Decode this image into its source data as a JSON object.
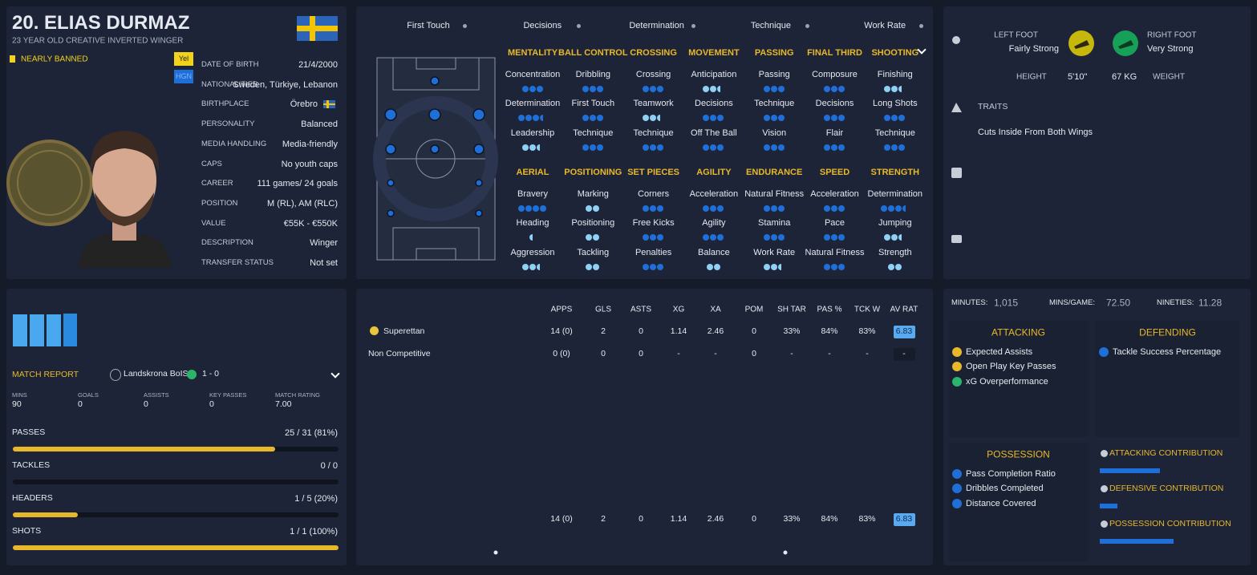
{
  "header": {
    "name": "20. ELIAS DURMAZ",
    "subtitle": "23 YEAR OLD CREATIVE INVERTED WINGER",
    "status": "NEARLY BANNED",
    "badges": [
      "Yel",
      "HGN"
    ]
  },
  "info": [
    [
      "DATE OF BIRTH",
      "21/4/2000"
    ],
    [
      "NATIONALITIES",
      "Sweden, Türkiye, Lebanon"
    ],
    [
      "BIRTHPLACE",
      "Örebro"
    ],
    [
      "PERSONALITY",
      "Balanced"
    ],
    [
      "MEDIA HANDLING",
      "Media-friendly"
    ],
    [
      "CAPS",
      "No youth caps"
    ],
    [
      "CAREER",
      "111 games/ 24 goals"
    ],
    [
      "POSITION",
      "M (RL), AM (RLC)"
    ],
    [
      "VALUE",
      "€55K - €550K"
    ],
    [
      "DESCRIPTION",
      "Winger"
    ],
    [
      "TRANSFER STATUS",
      "Not set"
    ]
  ],
  "key_attributes": [
    "First Touch",
    "Decisions",
    "Determination",
    "Technique",
    "Work Rate"
  ],
  "attribute_groups": [
    {
      "name": "MENTALITY",
      "attributes": [
        {
          "name": "Concentration",
          "dots": 3
        },
        {
          "name": "Determination",
          "dots": 3.5
        },
        {
          "name": "Leadership",
          "dots": 2.5
        }
      ]
    },
    {
      "name": "BALL CONTROL",
      "attributes": [
        {
          "name": "Dribbling",
          "dots": 3
        },
        {
          "name": "First Touch",
          "dots": 3
        },
        {
          "name": "Technique",
          "dots": 3
        }
      ]
    },
    {
      "name": "CROSSING",
      "attributes": [
        {
          "name": "Crossing",
          "dots": 3
        },
        {
          "name": "Teamwork",
          "dots": 2.5
        },
        {
          "name": "Technique",
          "dots": 3
        }
      ]
    },
    {
      "name": "MOVEMENT",
      "attributes": [
        {
          "name": "Anticipation",
          "dots": 2.5
        },
        {
          "name": "Decisions",
          "dots": 3
        },
        {
          "name": "Off The Ball",
          "dots": 3
        }
      ]
    },
    {
      "name": "PASSING",
      "attributes": [
        {
          "name": "Passing",
          "dots": 3
        },
        {
          "name": "Technique",
          "dots": 3
        },
        {
          "name": "Vision",
          "dots": 3
        }
      ]
    },
    {
      "name": "FINAL THIRD",
      "attributes": [
        {
          "name": "Composure",
          "dots": 3
        },
        {
          "name": "Decisions",
          "dots": 3
        },
        {
          "name": "Flair",
          "dots": 3
        }
      ]
    },
    {
      "name": "SHOOTING",
      "attributes": [
        {
          "name": "Finishing",
          "dots": 2.5
        },
        {
          "name": "Long Shots",
          "dots": 3
        },
        {
          "name": "Technique",
          "dots": 3
        }
      ]
    },
    {
      "name": "AERIAL",
      "attributes": [
        {
          "name": "Bravery",
          "dots": 4
        },
        {
          "name": "Heading",
          "dots": 0.5
        },
        {
          "name": "Aggression",
          "dots": 2.5
        }
      ]
    },
    {
      "name": "POSITIONING",
      "attributes": [
        {
          "name": "Marking",
          "dots": 2
        },
        {
          "name": "Positioning",
          "dots": 2
        },
        {
          "name": "Tackling",
          "dots": 2
        }
      ]
    },
    {
      "name": "SET PIECES",
      "attributes": [
        {
          "name": "Corners",
          "dots": 3
        },
        {
          "name": "Free Kicks",
          "dots": 3
        },
        {
          "name": "Penalties",
          "dots": 3
        }
      ]
    },
    {
      "name": "AGILITY",
      "attributes": [
        {
          "name": "Acceleration",
          "dots": 3
        },
        {
          "name": "Agility",
          "dots": 3
        },
        {
          "name": "Balance",
          "dots": 2
        }
      ]
    },
    {
      "name": "ENDURANCE",
      "attributes": [
        {
          "name": "Natural Fitness",
          "dots": 3
        },
        {
          "name": "Stamina",
          "dots": 3
        },
        {
          "name": "Work Rate",
          "dots": 2.5
        }
      ]
    },
    {
      "name": "SPEED",
      "attributes": [
        {
          "name": "Acceleration",
          "dots": 3
        },
        {
          "name": "Pace",
          "dots": 3
        },
        {
          "name": "Natural Fitness",
          "dots": 3
        }
      ]
    },
    {
      "name": "STRENGTH",
      "attributes": [
        {
          "name": "Determination",
          "dots": 3.5
        },
        {
          "name": "Jumping",
          "dots": 2.5
        },
        {
          "name": "Strength",
          "dots": 2
        }
      ]
    }
  ],
  "profile": {
    "left_foot_label": "LEFT FOOT",
    "left_foot": "Fairly Strong",
    "right_foot_label": "RIGHT FOOT",
    "right_foot": "Very Strong",
    "height_label": "HEIGHT",
    "height": "5'10\"",
    "weight": "67 KG",
    "weight_label": "WEIGHT",
    "traits_label": "TRAITS",
    "traits": [
      "Cuts Inside From Both Wings"
    ]
  },
  "match_report": {
    "title": "MATCH REPORT",
    "opponent": "Landskrona BoIS",
    "score": "1 - 0",
    "stats": [
      [
        "MINS",
        "90"
      ],
      [
        "GOALS",
        "0"
      ],
      [
        "ASSISTS",
        "0"
      ],
      [
        "KEY PASSES",
        "0"
      ],
      [
        "MATCH RATING",
        "7.00"
      ]
    ],
    "bars": [
      {
        "name": "PASSES",
        "made": 25,
        "total": 31,
        "label": "25 / 31 (81%)"
      },
      {
        "name": "TACKLES",
        "made": 0,
        "total": 0,
        "label": "0 / 0"
      },
      {
        "name": "HEADERS",
        "made": 1,
        "total": 5,
        "label": "1 / 5 (20%)"
      },
      {
        "name": "SHOTS",
        "made": 1,
        "total": 1,
        "label": "1 / 1 (100%)"
      }
    ]
  },
  "season_stats": {
    "columns": [
      "APPS",
      "GLS",
      "ASTS",
      "XG",
      "XA",
      "POM",
      "SH TAR",
      "PAS %",
      "TCK W",
      "AV RAT"
    ],
    "rows": [
      [
        "Superettan",
        "14 (0)",
        "2",
        "0",
        "1.14",
        "2.46",
        "0",
        "33%",
        "84%",
        "83%",
        "6.83"
      ],
      [
        "Non Competitive",
        "0 (0)",
        "0",
        "0",
        "-",
        "-",
        "0",
        "-",
        "-",
        "-",
        "-"
      ]
    ],
    "total": [
      "14 (0)",
      "2",
      "0",
      "1.14",
      "2.46",
      "0",
      "33%",
      "84%",
      "83%",
      "6.83"
    ]
  },
  "performance": {
    "summary": [
      [
        "MINUTES:",
        "1,015"
      ],
      [
        "MINS/GAME:",
        "72.50"
      ],
      [
        "NINETIES:",
        "11.28"
      ]
    ],
    "sections": [
      {
        "title": "ATTACKING",
        "items": [
          "Expected Assists",
          "Open Play Key Passes",
          "xG Overperformance"
        ]
      },
      {
        "title": "DEFENDING",
        "items": [
          "Tackle Success Percentage"
        ]
      },
      {
        "title": "POSSESSION",
        "items": [
          "Pass Completion Ratio",
          "Dribbles Completed",
          "Distance Covered"
        ]
      }
    ],
    "contributions": [
      {
        "name": "ATTACKING CONTRIBUTION",
        "value": 44
      },
      {
        "name": "DEFENSIVE CONTRIBUTION",
        "value": 13
      },
      {
        "name": "POSSESSION CONTRIBUTION",
        "value": 54
      }
    ]
  }
}
